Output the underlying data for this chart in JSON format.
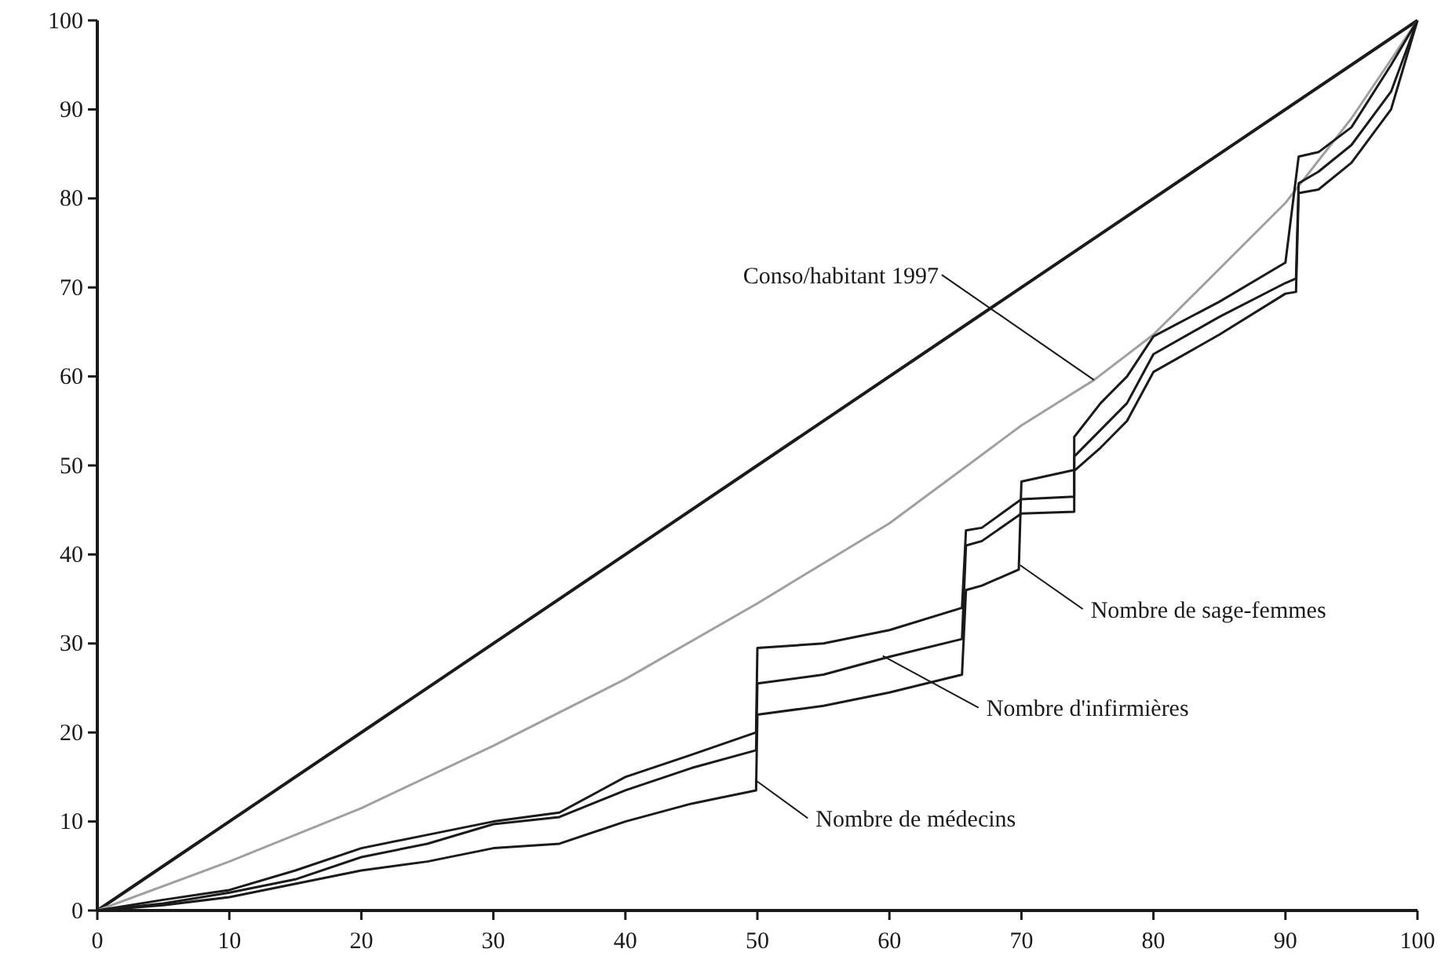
{
  "chart_data": {
    "type": "line",
    "xlim": [
      0,
      100
    ],
    "ylim": [
      0,
      100
    ],
    "xticks": [
      0,
      10,
      20,
      30,
      40,
      50,
      60,
      70,
      80,
      90,
      100
    ],
    "yticks": [
      0,
      10,
      20,
      30,
      40,
      50,
      60,
      70,
      80,
      90,
      100
    ],
    "grid": false,
    "marker": "none",
    "line_style": "solid",
    "series": [
      {
        "color": "#1a1a1a",
        "x": [
          0,
          100
        ],
        "values": [
          0,
          100
        ]
      },
      {
        "color": "#a0a0a0",
        "x": [
          0,
          10,
          20,
          30,
          40,
          50,
          60,
          70,
          75.5,
          80,
          90,
          95,
          100
        ],
        "values": [
          0,
          5.5,
          11.5,
          18.5,
          26,
          34.5,
          43.5,
          54.5,
          59.6,
          64.7,
          79.5,
          89,
          100
        ]
      },
      {
        "color": "#1a1a1a",
        "x": [
          0,
          5,
          10,
          15,
          20,
          25,
          30,
          35,
          40,
          45,
          49.9,
          50,
          55,
          60,
          65.5,
          65.8,
          67,
          69.8,
          70,
          74,
          74,
          76,
          78,
          80,
          85,
          90,
          91,
          92.5,
          95,
          98,
          100
        ],
        "values": [
          0,
          0.6,
          1.5,
          3,
          4.5,
          5.5,
          7,
          7.5,
          10,
          12,
          13.5,
          22,
          23,
          24.5,
          26.5,
          36,
          36.5,
          38.3,
          48.2,
          49.5,
          53.2,
          57,
          60,
          64.5,
          68.4,
          72.8,
          84.7,
          85.2,
          88,
          95,
          100
        ]
      },
      {
        "color": "#1a1a1a",
        "x": [
          0,
          5,
          10,
          15,
          20,
          25,
          30,
          35,
          40,
          45,
          49.9,
          50,
          55,
          60,
          65.5,
          65.8,
          67,
          70,
          74,
          74,
          76,
          78,
          80,
          85,
          90,
          90.8,
          91,
          92.5,
          95,
          98,
          100
        ],
        "values": [
          0,
          0.8,
          2,
          3.5,
          6,
          7.5,
          9.7,
          10.5,
          13.5,
          16,
          18,
          25.5,
          26.5,
          28.5,
          30.5,
          41,
          41.5,
          44.6,
          44.8,
          51,
          54,
          57,
          62.5,
          66.7,
          70.5,
          71,
          81.7,
          83,
          86,
          92,
          100
        ]
      },
      {
        "color": "#1a1a1a",
        "x": [
          0,
          5,
          10,
          15,
          20,
          25,
          30,
          35,
          40,
          45,
          49.9,
          50,
          55,
          60,
          65.5,
          65.8,
          67,
          70,
          74,
          74,
          76,
          78,
          80,
          85,
          90,
          90.8,
          91,
          92.5,
          95,
          98,
          100
        ],
        "values": [
          0,
          1.2,
          2.3,
          4.5,
          7,
          8.5,
          10,
          11,
          15,
          17.5,
          20,
          29.5,
          30,
          31.5,
          34,
          42.7,
          43,
          46.2,
          46.5,
          49.4,
          52,
          55,
          60.5,
          64.7,
          69.3,
          69.5,
          80.6,
          81,
          84,
          90,
          100
        ]
      }
    ],
    "annotations": [
      {
        "text": "Conso/habitant 1997",
        "x": 75.5,
        "y": 59.6
      },
      {
        "text": "Nombre de sage-femmes",
        "x": 69.9,
        "y": 38.8
      },
      {
        "text": "Nombre d'infirmières",
        "x": 59.5,
        "y": 28.6
      },
      {
        "text": "Nombre de médecins",
        "x": 49.9,
        "y": 14.6
      }
    ]
  }
}
